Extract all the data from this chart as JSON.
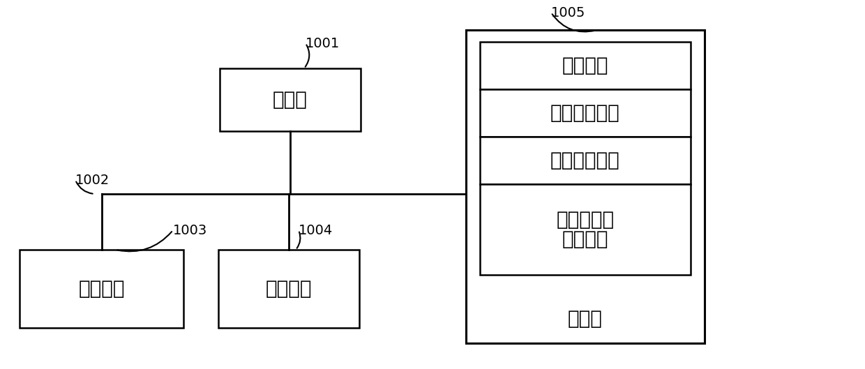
{
  "bg_color": "#ffffff",
  "line_color": "#000000",
  "box_color": "#ffffff",
  "box_edge": "#000000",
  "font_color": "#000000",
  "processor_label": "处理器",
  "user_if_label": "用户接口",
  "net_if_label": "网络接口",
  "storage_label": "存储器",
  "os_label": "操作系统",
  "net_comm_label": "网络通信模块",
  "user_mod_label": "用户接口模块",
  "sensor_label1": "传感器状态",
  "sensor_label2": "检测程序",
  "ref_1001": "1001",
  "ref_1002": "1002",
  "ref_1003": "1003",
  "ref_1004": "1004",
  "ref_1005": "1005",
  "fig_width": 12.4,
  "fig_height": 5.29,
  "dpi": 100
}
